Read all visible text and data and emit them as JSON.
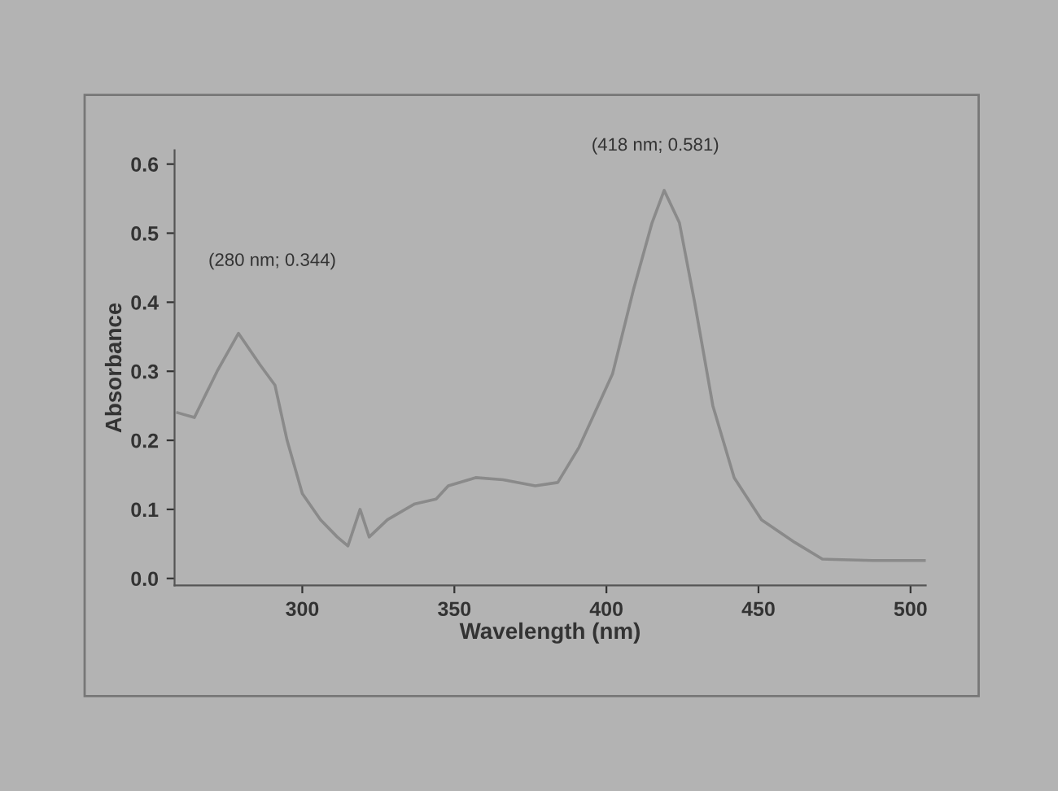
{
  "chart_data": {
    "type": "line",
    "xlabel": "Wavelength (nm)",
    "ylabel": "Absorbance",
    "annotations": [
      "(280 nm; 0.344)",
      "(418 nm; 0.581)"
    ],
    "series": [
      {
        "color": "#8a8a8a",
        "x": [
          259,
          264.5,
          272,
          279,
          286,
          291,
          295,
          300,
          306,
          311.5,
          315,
          319,
          322,
          328,
          337,
          344,
          348,
          357,
          366,
          376.6,
          384,
          391,
          402,
          409,
          415,
          419,
          424,
          429,
          435,
          442,
          451,
          462,
          471,
          487.5,
          505
        ],
        "values": [
          0.24,
          0.233,
          0.3,
          0.355,
          0.31,
          0.28,
          0.2,
          0.123,
          0.085,
          0.06,
          0.047,
          0.1,
          0.06,
          0.085,
          0.108,
          0.115,
          0.134,
          0.146,
          0.143,
          0.134,
          0.139,
          0.19,
          0.296,
          0.42,
          0.515,
          0.562,
          0.515,
          0.4,
          0.25,
          0.146,
          0.085,
          0.052,
          0.028,
          0.026,
          0.026
        ]
      }
    ],
    "xlim": [
      258,
      505
    ],
    "xticks": [
      300,
      350,
      400,
      450,
      500
    ],
    "ylim": [
      -0.01,
      0.62
    ],
    "yticks": [
      {
        "value": 0,
        "label": "0.0"
      },
      0.1,
      0.2,
      0.3,
      0.4,
      0.5,
      0.6
    ],
    "marker": "none",
    "line_style": "solid"
  }
}
